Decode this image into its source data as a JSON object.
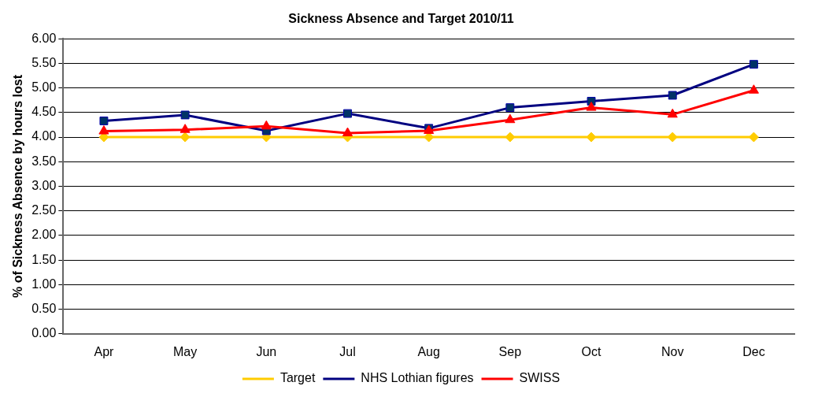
{
  "chart_data": {
    "type": "line",
    "title": "Sickness Absence and Target 2010/11",
    "ylabel": "% of Sickness Absence by hours lost",
    "categories": [
      "Apr",
      "May",
      "Jun",
      "Jul",
      "Aug",
      "Sep",
      "Oct",
      "Nov",
      "Dec"
    ],
    "series": [
      {
        "name": "Target",
        "color": "#ffcc00",
        "marker": "diamond",
        "values": [
          4.0,
          4.0,
          4.0,
          4.0,
          4.0,
          4.0,
          4.0,
          4.0,
          4.0
        ]
      },
      {
        "name": "NHS Lothian figures",
        "color": "#000080",
        "marker": "square",
        "values": [
          4.33,
          4.45,
          4.13,
          4.48,
          4.18,
          4.6,
          4.73,
          4.85,
          5.48
        ]
      },
      {
        "name": "SWISS",
        "color": "#ff0000",
        "marker": "triangle",
        "values": [
          4.12,
          4.15,
          4.22,
          4.08,
          4.13,
          4.35,
          4.6,
          4.46,
          4.95
        ]
      }
    ],
    "ylim": [
      0,
      6
    ],
    "yticks": [
      {
        "value": 0,
        "label": "0.00"
      },
      {
        "value": 0.5,
        "label": "0.50"
      },
      {
        "value": 1,
        "label": "1.00"
      },
      {
        "value": 1.5,
        "label": "1.50"
      },
      {
        "value": 2,
        "label": "2.00"
      },
      {
        "value": 2.5,
        "label": "2.50"
      },
      {
        "value": 3,
        "label": "3.00"
      },
      {
        "value": 3.5,
        "label": "3.50"
      },
      {
        "value": 4,
        "label": "4.00"
      },
      {
        "value": 4.5,
        "label": "4.50"
      },
      {
        "value": 5,
        "label": "5.00"
      },
      {
        "value": 5.5,
        "label": "5.50"
      },
      {
        "value": 6,
        "label": "6.00"
      }
    ],
    "grid": "y",
    "legend": "bottom",
    "line_style": "solid"
  }
}
